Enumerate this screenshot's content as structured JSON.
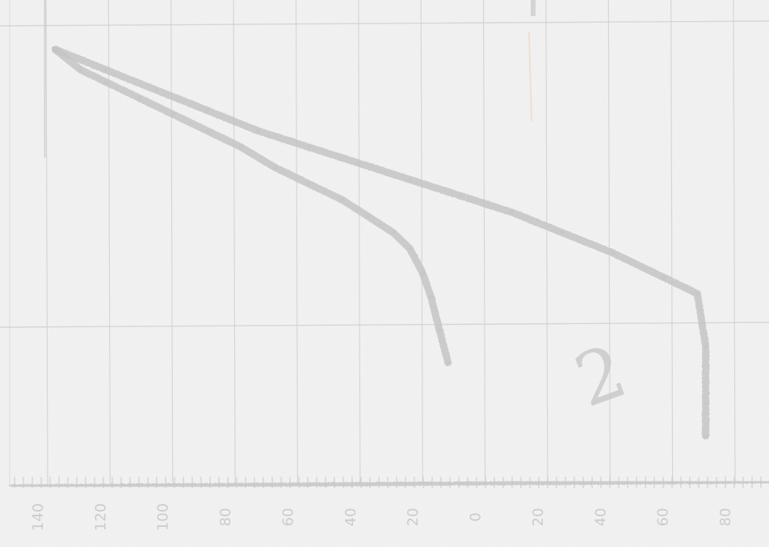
{
  "chart_data": {
    "type": "line",
    "title": "",
    "xlabel": "",
    "ylabel": "",
    "x_tick_labels": [
      "140",
      "120",
      "100",
      "80",
      "60",
      "40",
      "20",
      "0",
      "20",
      "40",
      "60",
      "80"
    ],
    "grid": true,
    "series": [
      {
        "x": [
          0,
          0.3,
          0.6,
          1.0,
          1.4,
          1.8,
          2.2,
          2.6,
          3.0,
          3.4,
          3.7,
          4.0,
          4.2,
          4.35,
          4.45,
          4.55,
          4.65
        ],
        "y": [
          0.95,
          0.9,
          0.87,
          0.83,
          0.79,
          0.75,
          0.71,
          0.66,
          0.62,
          0.58,
          0.54,
          0.5,
          0.46,
          0.4,
          0.34,
          0.26,
          0.18
        ]
      },
      {
        "x": [
          0,
          0.6,
          1.2,
          1.8,
          2.4,
          3.0,
          3.6,
          4.2,
          4.8,
          5.4,
          6.0,
          6.6,
          7.2,
          7.6,
          7.7,
          7.7,
          7.7
        ],
        "y": [
          0.95,
          0.9,
          0.85,
          0.8,
          0.75,
          0.71,
          0.67,
          0.63,
          0.59,
          0.55,
          0.5,
          0.45,
          0.39,
          0.35,
          0.22,
          0.08,
          0.0
        ]
      }
    ],
    "xlim": [
      -0.1,
      8.0
    ],
    "ylim": [
      -0.1,
      1.0
    ],
    "colors": {
      "curve": "#c4c4c4",
      "grid": "#cfcfcf",
      "axis": "#c8c8c8",
      "tick_text": "#cccccc",
      "accent": "#e9d5c4"
    },
    "annotations": [
      {
        "text": "2",
        "x": 6.3,
        "y": 0.07
      }
    ]
  }
}
